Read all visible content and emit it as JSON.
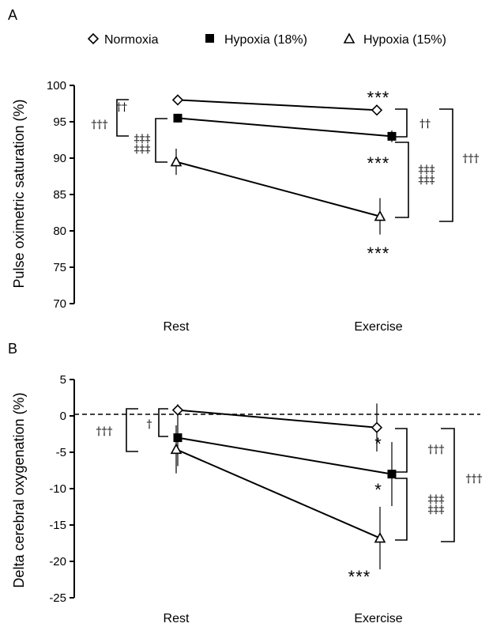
{
  "legend": [
    {
      "name": "Normoxia",
      "marker": "diamond-open"
    },
    {
      "name": "Hypoxia (18%)",
      "marker": "square-filled"
    },
    {
      "name": "Hypoxia (15%)",
      "marker": "triangle-open"
    }
  ],
  "chart_data": [
    {
      "panel": "A",
      "type": "line",
      "ylabel": "Pulse oximetric saturation (%)",
      "categories": [
        "Rest",
        "Exercise"
      ],
      "ylim": [
        70,
        100
      ],
      "yticks": [
        70,
        75,
        80,
        85,
        90,
        95,
        100
      ],
      "series": [
        {
          "name": "Normoxia",
          "values": [
            98.0,
            96.6
          ],
          "err": [
            0.3,
            0.4
          ]
        },
        {
          "name": "Hypoxia (18%)",
          "values": [
            95.5,
            93.0
          ],
          "err": [
            0.6,
            0.8
          ]
        },
        {
          "name": "Hypoxia (15%)",
          "values": [
            89.5,
            82.0
          ],
          "err": [
            1.8,
            2.5
          ]
        }
      ],
      "annotations": {
        "exercise_stars": [
          "***",
          "***",
          "***"
        ],
        "rest_brackets": [
          "††",
          "‡‡‡",
          "†††"
        ],
        "exercise_brackets": [
          "††",
          "‡‡‡",
          "†††"
        ]
      }
    },
    {
      "panel": "B",
      "type": "line",
      "ylabel": "Delta cerebral oxygenation (%)",
      "categories": [
        "Rest",
        "Exercise"
      ],
      "ylim": [
        -25,
        5
      ],
      "yticks": [
        5,
        0,
        -5,
        -10,
        -15,
        -20,
        -25
      ],
      "series": [
        {
          "name": "Normoxia",
          "values": [
            0.8,
            -1.6
          ],
          "err": [
            0.8,
            3.3
          ]
        },
        {
          "name": "Hypoxia (18%)",
          "values": [
            -3.0,
            -8.0
          ],
          "err": [
            3.9,
            4.4
          ]
        },
        {
          "name": "Hypoxia (15%)",
          "values": [
            -4.6,
            -16.8
          ],
          "err": [
            3.3,
            4.3
          ]
        }
      ],
      "annotations": {
        "exercise_stars": [
          "*",
          "*",
          "***"
        ],
        "rest_brackets": [
          "†",
          "†††"
        ],
        "exercise_brackets": [
          "†††",
          "‡‡‡",
          "†††"
        ]
      }
    }
  ]
}
